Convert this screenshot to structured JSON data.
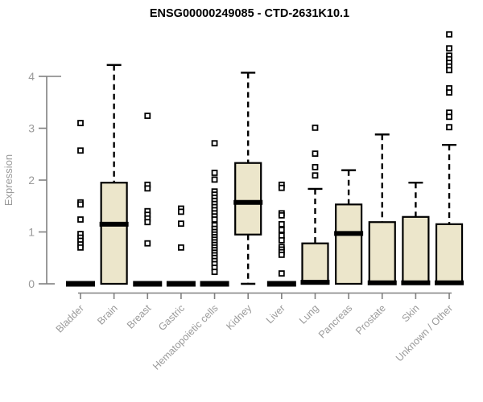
{
  "chart_data": {
    "type": "boxplot",
    "title": "ENSG00000249085 - CTD-2631K10.1",
    "ylabel": "Expression",
    "xlabel": "",
    "yticks": [
      0,
      1,
      2,
      3,
      4
    ],
    "ylim": [
      0,
      4.95
    ],
    "grid": false,
    "legend": "none",
    "categories": [
      "Bladder",
      "Brain",
      "Breast",
      "Gastric",
      "Hematopoietic cells",
      "Kidney",
      "Liver",
      "Lung",
      "Pancreas",
      "Prostate",
      "Skin",
      "Unknown / Other"
    ],
    "boxes": [
      {
        "category": "Bladder",
        "q1": 0,
        "median": 0,
        "q3": 0,
        "whisker_low": 0,
        "whisker_high": 0,
        "outliers": [
          3.1,
          2.57,
          1.57,
          1.53,
          1.24,
          0.96,
          0.89,
          0.83,
          0.76,
          0.7
        ]
      },
      {
        "category": "Brain",
        "q1": 0,
        "median": 1.15,
        "q3": 1.95,
        "whisker_low": 0,
        "whisker_high": 4.22,
        "outliers": []
      },
      {
        "category": "Breast",
        "q1": 0,
        "median": 0,
        "q3": 0,
        "whisker_low": 0,
        "whisker_high": 0,
        "outliers": [
          3.24,
          1.91,
          1.84,
          1.4,
          1.33,
          1.26,
          1.19,
          0.78
        ]
      },
      {
        "category": "Gastric",
        "q1": 0,
        "median": 0,
        "q3": 0,
        "whisker_low": 0,
        "whisker_high": 0,
        "outliers": [
          1.45,
          1.39,
          1.16,
          0.7
        ]
      },
      {
        "category": "Hematopoietic cells",
        "q1": 0,
        "median": 0,
        "q3": 0,
        "whisker_low": 0,
        "whisker_high": 0,
        "outliers": [
          2.71,
          2.14,
          2.01,
          1.78,
          1.72,
          1.66,
          1.6,
          1.54,
          1.48,
          1.42,
          1.36,
          1.3,
          1.24,
          1.13,
          1.06,
          1.0,
          0.95,
          0.9,
          0.85,
          0.8,
          0.75,
          0.7,
          0.65,
          0.6,
          0.55,
          0.5,
          0.44,
          0.38,
          0.31,
          0.23
        ]
      },
      {
        "category": "Kidney",
        "q1": 0.95,
        "median": 1.57,
        "q3": 2.33,
        "whisker_low": 0,
        "whisker_high": 4.07,
        "outliers": []
      },
      {
        "category": "Liver",
        "q1": 0,
        "median": 0,
        "q3": 0,
        "whisker_low": 0,
        "whisker_high": 0,
        "outliers": [
          1.91,
          1.85,
          1.36,
          1.32,
          1.15,
          1.04,
          0.93,
          0.84,
          0.71,
          0.66,
          0.61,
          0.56,
          0.2
        ]
      },
      {
        "category": "Lung",
        "q1": 0,
        "median": 0.03,
        "q3": 0.78,
        "whisker_low": 0,
        "whisker_high": 1.83,
        "outliers": [
          3.01,
          2.51,
          2.25,
          2.09
        ]
      },
      {
        "category": "Pancreas",
        "q1": 0,
        "median": 0.97,
        "q3": 1.53,
        "whisker_low": 0,
        "whisker_high": 2.19,
        "outliers": []
      },
      {
        "category": "Prostate",
        "q1": 0,
        "median": 0.02,
        "q3": 1.19,
        "whisker_low": 0,
        "whisker_high": 2.88,
        "outliers": []
      },
      {
        "category": "Skin",
        "q1": 0,
        "median": 0.02,
        "q3": 1.29,
        "whisker_low": 0,
        "whisker_high": 1.95,
        "outliers": []
      },
      {
        "category": "Unknown / Other",
        "q1": 0,
        "median": 0.02,
        "q3": 1.15,
        "whisker_low": 0,
        "whisker_high": 2.68,
        "outliers": [
          4.81,
          4.54,
          4.4,
          4.33,
          4.26,
          4.19,
          4.12,
          3.77,
          3.69,
          3.3,
          3.22,
          3.02
        ]
      }
    ],
    "colors": {
      "box_fill": "#ece6cb",
      "box_border": "#000000",
      "median": "#000000",
      "whisker": "#000000",
      "outlier_fill": "#ffffff",
      "axis": "#808080",
      "tick_text": "#9a9a9a",
      "title": "#000000",
      "background": "#ffffff"
    }
  }
}
